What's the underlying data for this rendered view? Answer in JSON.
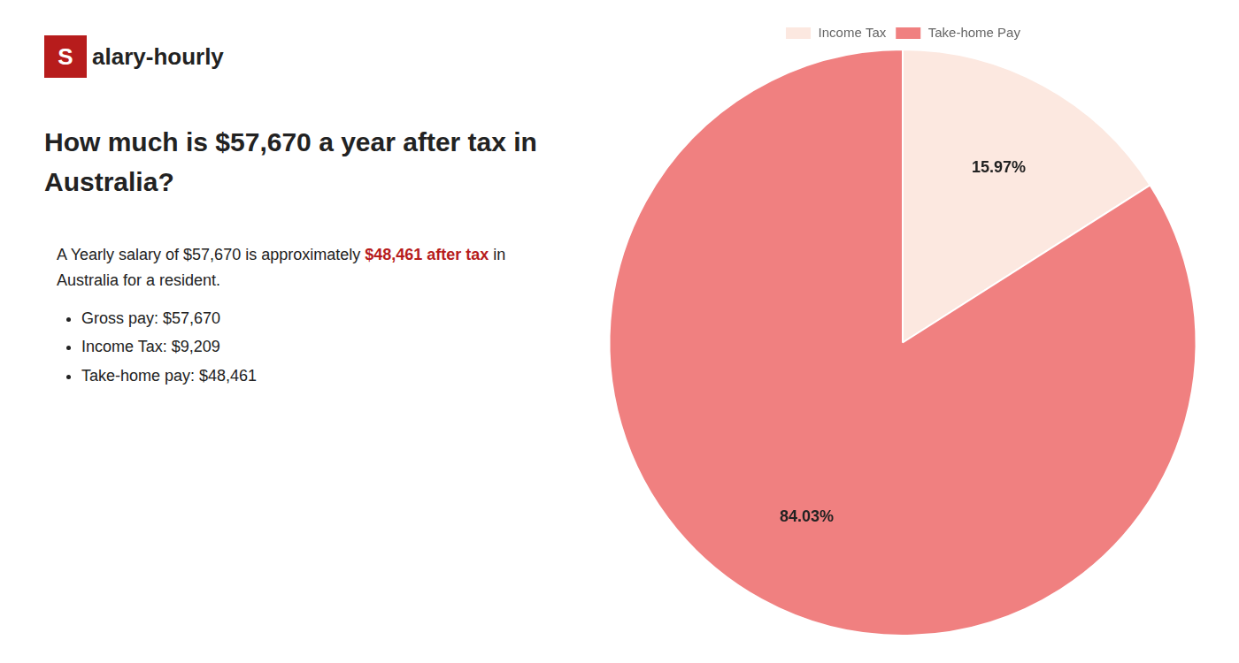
{
  "chart_data": {
    "type": "pie",
    "title": [
      "How much is $57,670 a year after tax in",
      "Australia?"
    ],
    "annotations": [
      [
        {
          "text": "S",
          "color": "#b71c1c"
        },
        {
          "text": "alary-hourly"
        }
      ],
      [
        {
          "text": "A Yearly salary of $57,670 is approximately "
        },
        {
          "text": "$48,461 after tax",
          "color": "#b71c1c"
        },
        {
          "text": " in"
        }
      ],
      [
        {
          "text": "Australia for a resident."
        }
      ],
      [
        {
          "text": "Gross pay: $57,670"
        }
      ],
      [
        {
          "text": "Income Tax: $9,209"
        }
      ],
      [
        {
          "text": "Take-home pay: $48,461"
        }
      ]
    ],
    "categories": [
      "Income Tax",
      "Take-home Pay"
    ],
    "values": [
      15.97,
      84.03
    ],
    "value_labels": [
      "15.97%",
      "84.03%"
    ],
    "colors": [
      "#fce8e0",
      "#f08080"
    ],
    "data_labels": true,
    "legend": "top"
  }
}
